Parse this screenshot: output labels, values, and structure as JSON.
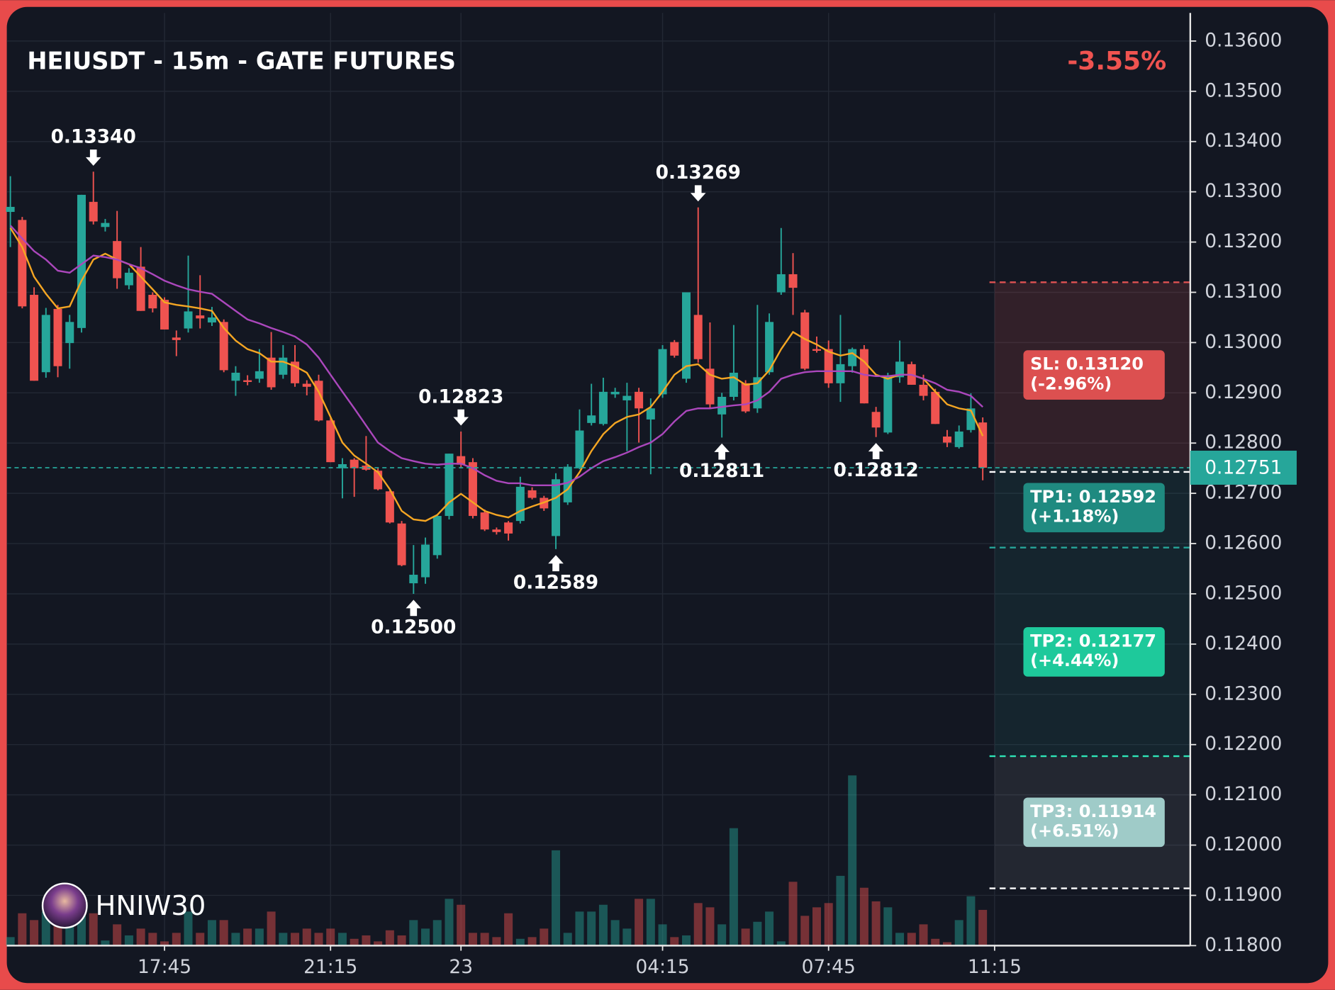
{
  "chart_data": {
    "type": "candlestick",
    "title": "HEIUSDT - 15m - GATE FUTURES",
    "change": "-3.55%",
    "watermark": "HNIW30",
    "up_color": "#26a69a",
    "down_color": "#ef5350",
    "open": [
      0.1326,
      0.13244,
      0.13095,
      0.12941,
      0.13067,
      0.12999,
      0.13029,
      0.1328,
      0.1323,
      0.13202,
      0.13114,
      0.13151,
      0.13095,
      0.13085,
      0.1301,
      0.13028,
      0.13054,
      0.1304,
      0.13041,
      0.12924,
      0.12925,
      0.12928,
      0.1297,
      0.12936,
      0.12962,
      0.12918,
      0.12924,
      0.12845,
      0.1275,
      0.12767,
      0.12755,
      0.12745,
      0.12704,
      0.1264,
      0.12521,
      0.12533,
      0.12577,
      0.12655,
      0.12774,
      0.12762,
      0.12662,
      0.12628,
      0.12642,
      0.12645,
      0.12706,
      0.12691,
      0.12615,
      0.12682,
      0.1275,
      0.1284,
      0.12838,
      0.12897,
      0.12885,
      0.12902,
      0.12847,
      0.12897,
      0.13001,
      0.12928,
      0.13055,
      0.12948,
      0.12857,
      0.12892,
      0.12919,
      0.12869,
      0.12941,
      0.131,
      0.13136,
      0.1306,
      0.12987,
      0.12987,
      0.12919,
      0.12953,
      0.12987,
      0.12862,
      0.12821,
      0.12931,
      0.12957,
      0.12916,
      0.12902,
      0.12813,
      0.12792,
      0.12826,
      0.12841
    ],
    "high": [
      0.13331,
      0.1325,
      0.1311,
      0.13069,
      0.13075,
      0.13055,
      0.13294,
      0.1334,
      0.13246,
      0.13262,
      0.13148,
      0.1319,
      0.131,
      0.1309,
      0.13024,
      0.13173,
      0.13134,
      0.13071,
      0.13046,
      0.12953,
      0.12935,
      0.12987,
      0.13021,
      0.12995,
      0.12995,
      0.12925,
      0.12936,
      0.1285,
      0.1277,
      0.1277,
      0.12814,
      0.1275,
      0.12706,
      0.12645,
      0.12597,
      0.12612,
      0.12658,
      0.12779,
      0.12823,
      0.1277,
      0.12668,
      0.12632,
      0.12645,
      0.12733,
      0.12712,
      0.12695,
      0.1274,
      0.12758,
      0.12867,
      0.12918,
      0.1293,
      0.1291,
      0.1292,
      0.1291,
      0.12889,
      0.12995,
      0.13005,
      0.131,
      0.13269,
      0.1304,
      0.129,
      0.13035,
      0.12925,
      0.13075,
      0.13058,
      0.13228,
      0.13178,
      0.13065,
      0.13012,
      0.13004,
      0.13055,
      0.1299,
      0.12995,
      0.12872,
      0.1294,
      0.13004,
      0.12962,
      0.12936,
      0.12908,
      0.12826,
      0.12835,
      0.12899,
      0.12851
    ],
    "low": [
      0.1319,
      0.13068,
      0.12924,
      0.1293,
      0.12931,
      0.12948,
      0.1302,
      0.13235,
      0.13221,
      0.13107,
      0.13106,
      0.13063,
      0.1306,
      0.13026,
      0.12973,
      0.1302,
      0.13028,
      0.13033,
      0.12941,
      0.12894,
      0.12915,
      0.1292,
      0.12906,
      0.12928,
      0.12912,
      0.12895,
      0.12843,
      0.12762,
      0.1269,
      0.12693,
      0.12745,
      0.12706,
      0.1264,
      0.12555,
      0.125,
      0.1252,
      0.1257,
      0.12648,
      0.1275,
      0.1265,
      0.12625,
      0.12618,
      0.12606,
      0.1264,
      0.12688,
      0.12665,
      0.12589,
      0.12677,
      0.12748,
      0.12835,
      0.12835,
      0.1289,
      0.12784,
      0.12801,
      0.12738,
      0.1289,
      0.1297,
      0.1292,
      0.1296,
      0.1287,
      0.12811,
      0.12885,
      0.1286,
      0.1286,
      0.12936,
      0.13095,
      0.13055,
      0.12945,
      0.1298,
      0.1291,
      0.12882,
      0.1294,
      0.12879,
      0.12812,
      0.12818,
      0.1292,
      0.12916,
      0.12885,
      0.12838,
      0.12792,
      0.12789,
      0.12821,
      0.12726
    ],
    "close": [
      0.1327,
      0.13072,
      0.12924,
      0.13055,
      0.12953,
      0.13041,
      0.13294,
      0.13241,
      0.13238,
      0.13128,
      0.13139,
      0.13063,
      0.13068,
      0.13026,
      0.13005,
      0.13062,
      0.13048,
      0.1305,
      0.12945,
      0.1294,
      0.12922,
      0.12943,
      0.12911,
      0.1297,
      0.12919,
      0.12912,
      0.12845,
      0.12762,
      0.12758,
      0.1275,
      0.12747,
      0.12708,
      0.12642,
      0.12557,
      0.12538,
      0.12598,
      0.12655,
      0.12779,
      0.12757,
      0.12655,
      0.12628,
      0.12623,
      0.1262,
      0.12713,
      0.12691,
      0.1267,
      0.12728,
      0.12753,
      0.12825,
      0.12855,
      0.12902,
      0.12902,
      0.12894,
      0.12869,
      0.12869,
      0.12987,
      0.12974,
      0.131,
      0.12967,
      0.12877,
      0.12892,
      0.1294,
      0.12863,
      0.12931,
      0.13041,
      0.13136,
      0.13109,
      0.12948,
      0.12984,
      0.12919,
      0.12957,
      0.12987,
      0.12879,
      0.12831,
      0.12933,
      0.12962,
      0.12916,
      0.12894,
      0.12838,
      0.12801,
      0.12823,
      0.12869,
      0.12751
    ],
    "volume": [
      10,
      38,
      30,
      40,
      30,
      28,
      40,
      38,
      6,
      25,
      12,
      20,
      15,
      5,
      15,
      40,
      15,
      30,
      30,
      15,
      20,
      20,
      40,
      15,
      15,
      20,
      15,
      20,
      15,
      8,
      12,
      5,
      18,
      12,
      30,
      20,
      30,
      55,
      48,
      15,
      15,
      10,
      38,
      8,
      10,
      20,
      112,
      15,
      40,
      40,
      48,
      30,
      20,
      55,
      55,
      25,
      10,
      12,
      50,
      45,
      25,
      138,
      20,
      28,
      40,
      5,
      75,
      35,
      45,
      50,
      82,
      200,
      68,
      52,
      45,
      15,
      15,
      25,
      8,
      4,
      30,
      58,
      42
    ],
    "lines": [
      {
        "color": "#f5a623",
        "values": [
          0.13228,
          0.1319,
          0.13131,
          0.13097,
          0.13068,
          0.13072,
          0.13123,
          0.13165,
          0.13177,
          0.13165,
          0.13156,
          0.13131,
          0.13106,
          0.1308,
          0.13075,
          0.13072,
          0.13068,
          0.13063,
          0.13029,
          0.13004,
          0.12987,
          0.12979,
          0.12962,
          0.12962,
          0.12953,
          0.1294,
          0.12902,
          0.12852,
          0.12801,
          0.12775,
          0.12759,
          0.12742,
          0.12708,
          0.12665,
          0.12648,
          0.12645,
          0.12657,
          0.12682,
          0.12699,
          0.12682,
          0.12665,
          0.12657,
          0.12652,
          0.12665,
          0.12674,
          0.12682,
          0.12691,
          0.12708,
          0.12742,
          0.12784,
          0.12818,
          0.1284,
          0.12852,
          0.12857,
          0.12872,
          0.12902,
          0.12936,
          0.12953,
          0.12957,
          0.12936,
          0.12928,
          0.12931,
          0.12916,
          0.12919,
          0.12945,
          0.12987,
          0.13021,
          0.13007,
          0.12996,
          0.12982,
          0.12974,
          0.12979,
          0.12962,
          0.12936,
          0.12928,
          0.12936,
          0.12936,
          0.12928,
          0.12902,
          0.12877,
          0.12869,
          0.12865,
          0.12814
        ]
      },
      {
        "color": "#ab47bc",
        "values": [
          0.13233,
          0.13207,
          0.13182,
          0.13165,
          0.13143,
          0.13139,
          0.13156,
          0.13173,
          0.1317,
          0.13165,
          0.13156,
          0.13148,
          0.13136,
          0.13123,
          0.13114,
          0.13106,
          0.13101,
          0.13097,
          0.1308,
          0.13063,
          0.13046,
          0.13038,
          0.13029,
          0.13021,
          0.13012,
          0.12996,
          0.1297,
          0.12936,
          0.12902,
          0.12869,
          0.12835,
          0.12801,
          0.12784,
          0.1277,
          0.12764,
          0.12759,
          0.12757,
          0.12759,
          0.12759,
          0.1275,
          0.12736,
          0.12725,
          0.1272,
          0.1272,
          0.12716,
          0.12716,
          0.12716,
          0.12721,
          0.12733,
          0.1275,
          0.12764,
          0.12772,
          0.12781,
          0.12792,
          0.12801,
          0.12818,
          0.12843,
          0.12864,
          0.12869,
          0.12869,
          0.12872,
          0.12875,
          0.12877,
          0.12885,
          0.12902,
          0.12928,
          0.12936,
          0.12941,
          0.12943,
          0.12943,
          0.12943,
          0.12943,
          0.12936,
          0.12933,
          0.12933,
          0.12936,
          0.12936,
          0.12928,
          0.12919,
          0.12906,
          0.12902,
          0.12894,
          0.12872
        ]
      }
    ],
    "ylim": [
      0.118,
      0.13656
    ],
    "yticks": [
      {
        "value": 0.136,
        "label": "0.13600"
      },
      {
        "value": 0.135,
        "label": "0.13500"
      },
      {
        "value": 0.134,
        "label": "0.13400"
      },
      {
        "value": 0.133,
        "label": "0.13300"
      },
      {
        "value": 0.132,
        "label": "0.13200"
      },
      {
        "value": 0.131,
        "label": "0.13100"
      },
      {
        "value": 0.13,
        "label": "0.13000"
      },
      {
        "value": 0.129,
        "label": "0.12900"
      },
      {
        "value": 0.128,
        "label": "0.12800"
      },
      {
        "value": 0.127,
        "label": "0.12700"
      },
      {
        "value": 0.126,
        "label": "0.12600"
      },
      {
        "value": 0.125,
        "label": "0.12500"
      },
      {
        "value": 0.124,
        "label": "0.12400"
      },
      {
        "value": 0.123,
        "label": "0.12300"
      },
      {
        "value": 0.122,
        "label": "0.12200"
      },
      {
        "value": 0.121,
        "label": "0.12100"
      },
      {
        "value": 0.12,
        "label": "0.12000"
      },
      {
        "value": 0.119,
        "label": "0.11900"
      },
      {
        "value": 0.118,
        "label": "0.11800"
      }
    ],
    "xlim": [
      -0.3,
      99.5
    ],
    "xticks": [
      {
        "value": 13,
        "label": "17:45"
      },
      {
        "value": 27,
        "label": "21:15"
      },
      {
        "value": 38,
        "label": "23"
      },
      {
        "value": 55,
        "label": "04:15"
      },
      {
        "value": 69,
        "label": "07:45"
      },
      {
        "value": 83,
        "label": "11:15"
      }
    ],
    "grid": true,
    "last_price": 0.12751,
    "markers": [
      {
        "marker": "high",
        "value": 0.1334,
        "label": "0.13340"
      },
      {
        "marker": "high",
        "value": 0.13269,
        "label": "0.13269"
      },
      {
        "marker": "high",
        "value": 0.12823,
        "label": "0.12823"
      },
      {
        "marker": "low",
        "value": 0.125,
        "label": "0.12500"
      },
      {
        "marker": "low",
        "value": 0.12589,
        "label": "0.12589"
      },
      {
        "marker": "low",
        "value": 0.12811,
        "label": "0.12811"
      },
      {
        "marker": "low",
        "value": 0.12812,
        "label": "0.12812"
      }
    ],
    "levels": [
      {
        "label": "SL: 0.13120",
        "change": "(-2.96%)",
        "value": 0.1312,
        "color": "#dc5050"
      },
      {
        "label": "TP1: 0.12592",
        "change": "(+1.18%)",
        "value": 0.12592,
        "color": "#1f8a80"
      },
      {
        "label": "TP2: 0.12177",
        "change": "(+4.44%)",
        "value": 0.12177,
        "color": "#1ec99b"
      },
      {
        "label": "TP3: 0.11914",
        "change": "(+6.51%)",
        "value": 0.11914,
        "color": "#9fcbc8"
      }
    ]
  }
}
